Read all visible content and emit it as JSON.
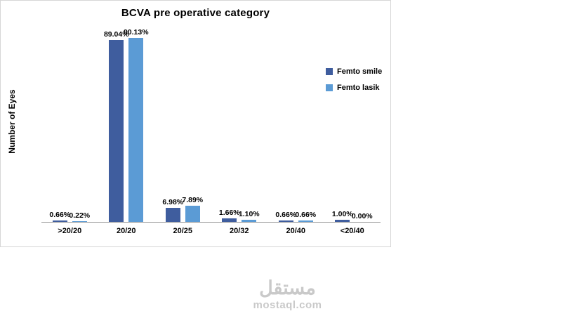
{
  "watermark": {
    "arabic": "مستقل",
    "latin": "mostaql.com"
  },
  "chart_data": {
    "type": "bar",
    "title": "BCVA pre operative category",
    "xlabel": "",
    "ylabel": "Number of Eyes",
    "categories": [
      ">20/20",
      "20/20",
      "20/25",
      "20/32",
      "20/40",
      "<20/40"
    ],
    "series": [
      {
        "name": "Femto smile",
        "color": "#3F5D9E",
        "values": [
          0.66,
          89.04,
          6.98,
          1.66,
          0.66,
          1.0
        ],
        "labels": [
          "0.66%",
          "89.04%",
          "6.98%",
          "1.66%",
          "0.66%",
          "1.00%"
        ]
      },
      {
        "name": "Femto lasik",
        "color": "#5B9BD5",
        "values": [
          0.22,
          90.13,
          7.89,
          1.1,
          0.66,
          0.0
        ],
        "labels": [
          "0.22%",
          "90.13%",
          "7.89%",
          "1.10%",
          "0.66%",
          "0.00%"
        ]
      }
    ],
    "ylim": [
      0,
      93
    ],
    "grid": false,
    "legend_position": "right-inside"
  }
}
